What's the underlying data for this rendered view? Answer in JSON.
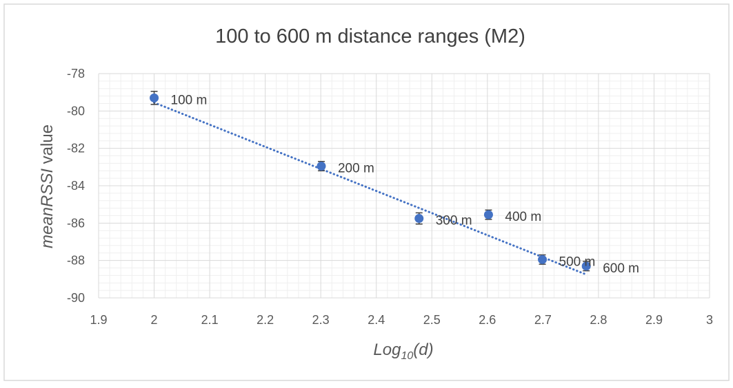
{
  "chart_data": {
    "type": "scatter",
    "title": "100 to 600 m distance ranges (M2)",
    "xlabel": {
      "base": "Log",
      "sub": "10",
      "rest": "(d)"
    },
    "ylabel": {
      "italic": "meanRSSI",
      "rest": " value"
    },
    "xlim": [
      1.9,
      3
    ],
    "ylim": [
      -90,
      -78
    ],
    "x_ticks": [
      "1.9",
      "2",
      "2.1",
      "2.2",
      "2.3",
      "2.4",
      "2.5",
      "2.6",
      "2.7",
      "2.8",
      "2.9",
      "3"
    ],
    "y_ticks": [
      "-78",
      "-80",
      "-82",
      "-84",
      "-86",
      "-88",
      "-90"
    ],
    "minor_grid": true,
    "major_grid": true,
    "marker_color": "#4472C4",
    "trendline": {
      "style": "dotted",
      "color": "#4472C4",
      "from": [
        2.0,
        -79.55
      ],
      "to": [
        2.778,
        -88.75
      ]
    },
    "series": [
      {
        "points": [
          {
            "x": 2.0,
            "y": -79.3,
            "err": 0.35,
            "label": "100 m"
          },
          {
            "x": 2.301,
            "y": -82.95,
            "err": 0.25,
            "label": "200 m"
          },
          {
            "x": 2.477,
            "y": -85.75,
            "err": 0.3,
            "label": "300 m"
          },
          {
            "x": 2.602,
            "y": -85.55,
            "err": 0.25,
            "label": "400 m"
          },
          {
            "x": 2.699,
            "y": -87.95,
            "err": 0.25,
            "label": "500 m"
          },
          {
            "x": 2.778,
            "y": -88.3,
            "err": 0.25,
            "label": "600 m"
          }
        ]
      }
    ]
  }
}
